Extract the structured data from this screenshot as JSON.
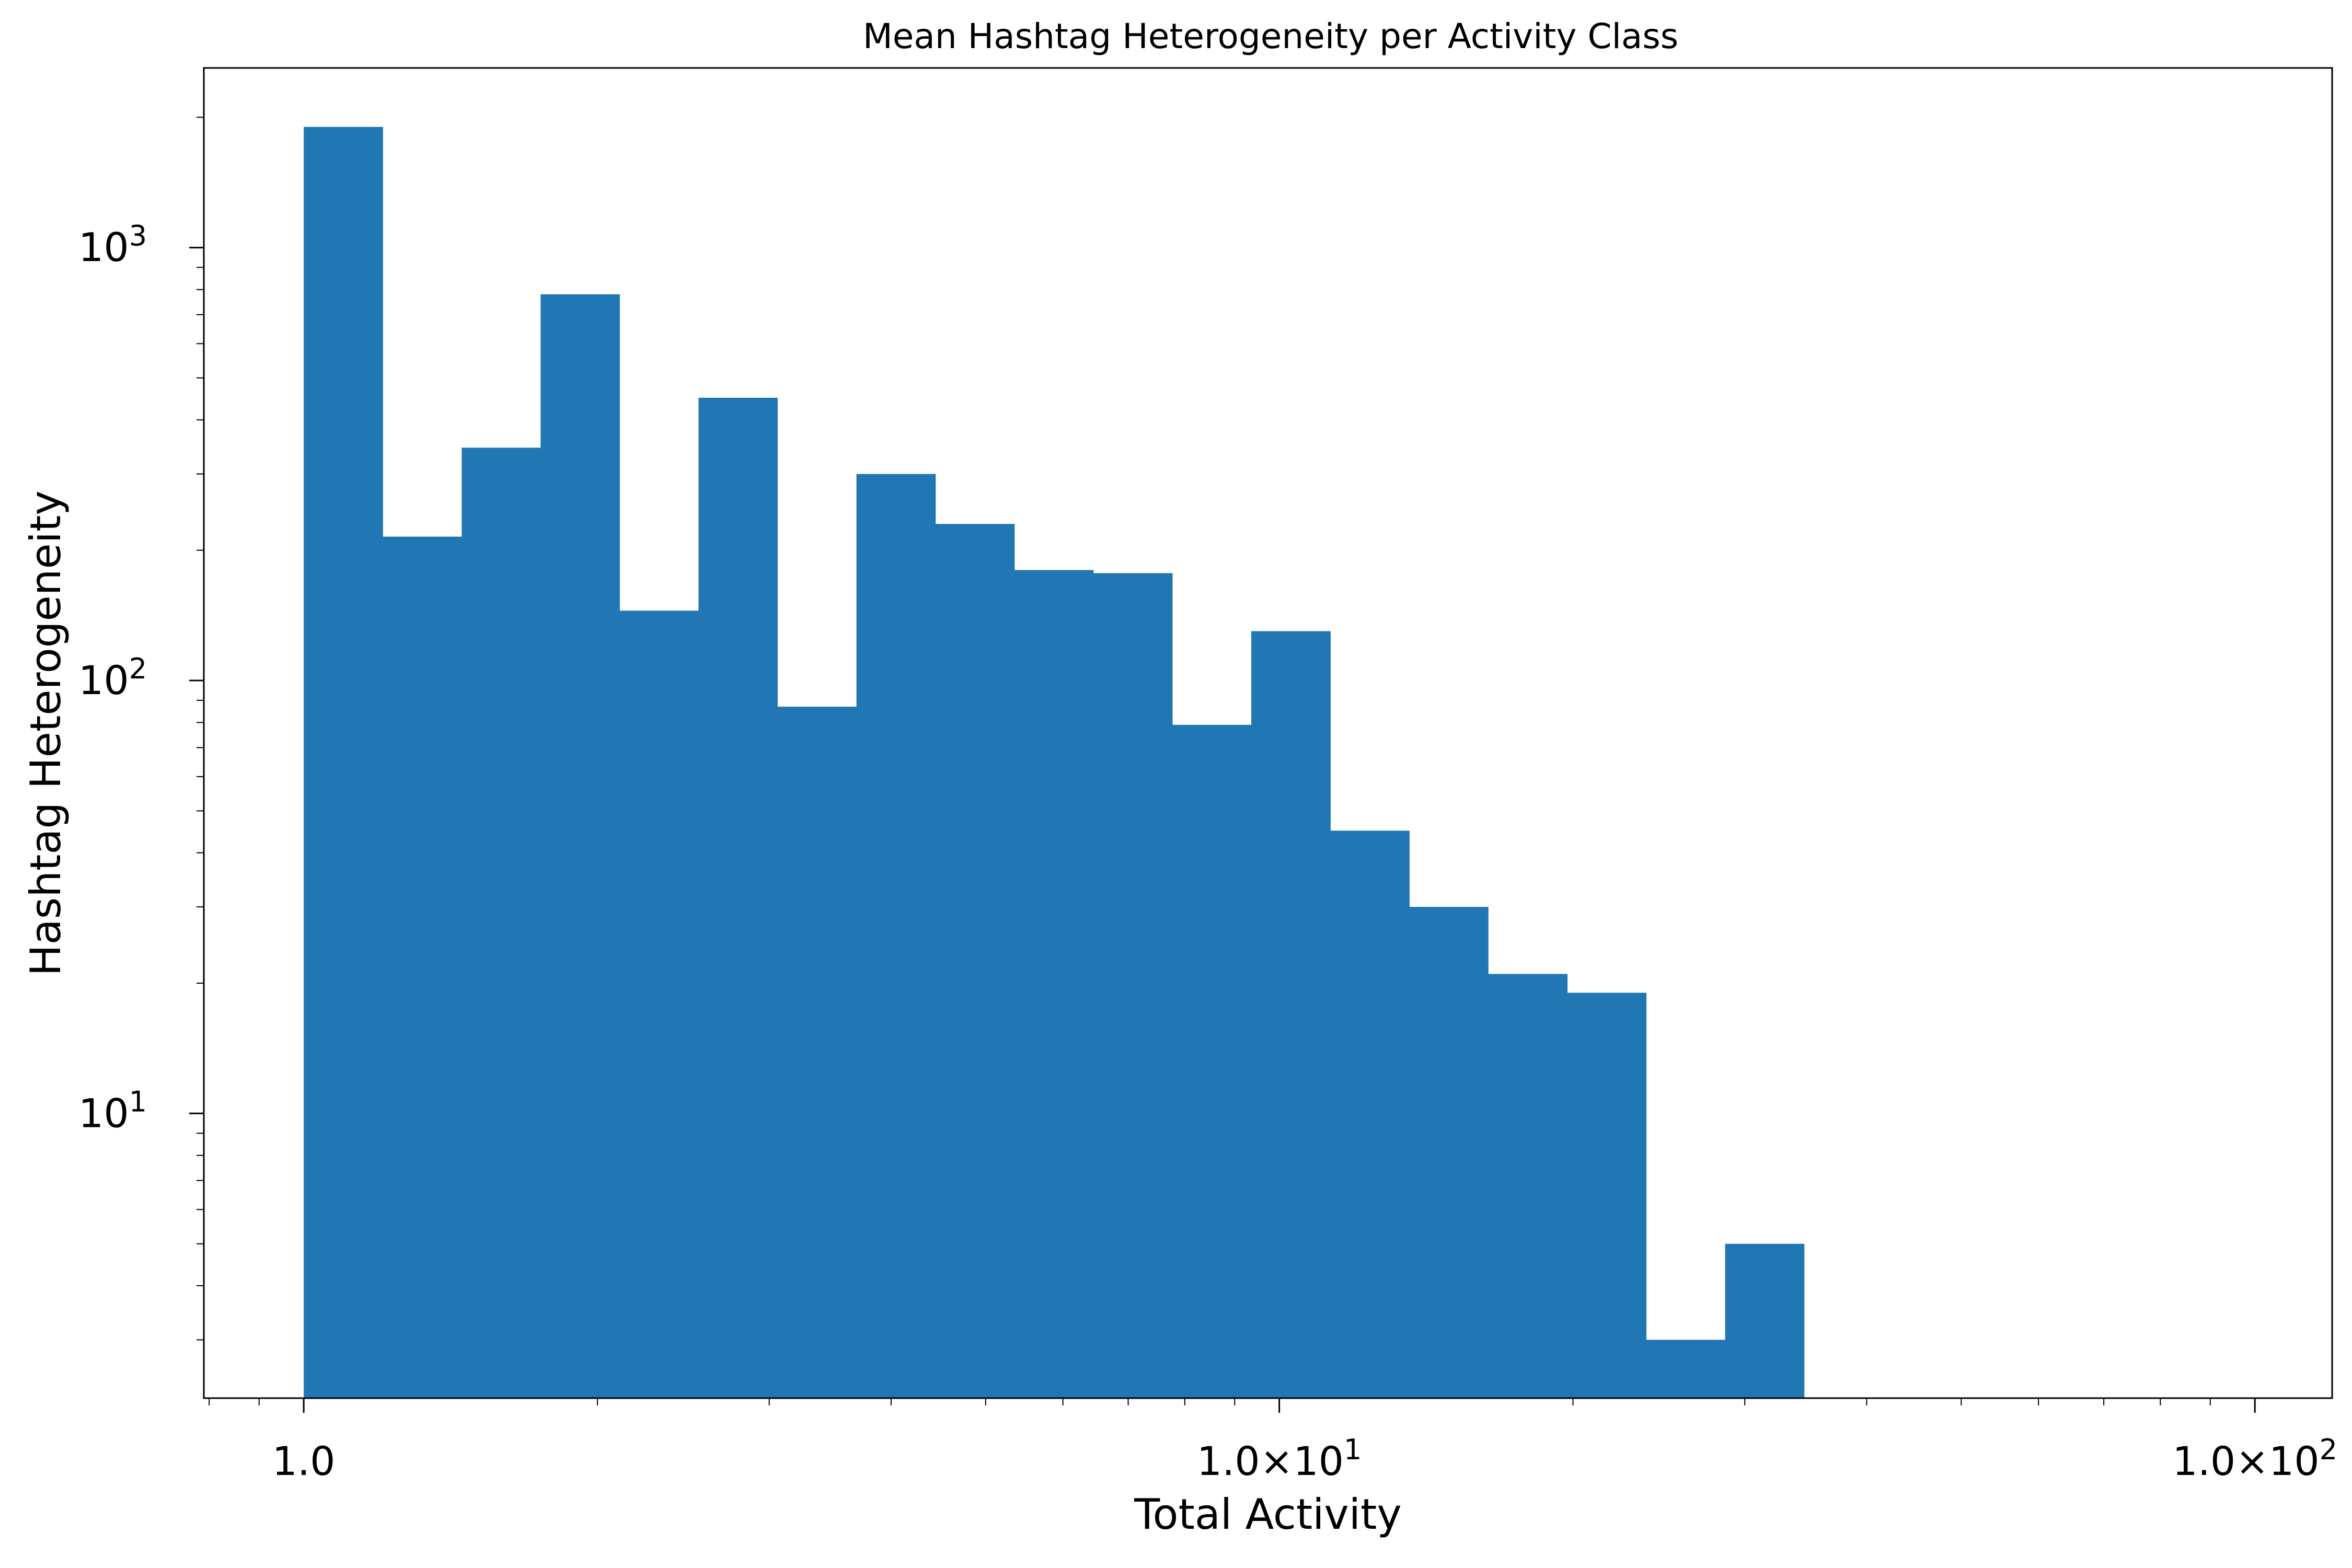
{
  "chart_data": {
    "type": "bar",
    "title": "Mean Hashtag Heterogeneity per Activity Class",
    "xlabel": "Total Activity",
    "ylabel": "Hashtag Heterogeneity",
    "x_scale": "log",
    "y_scale": "log",
    "xlim": [
      0.79,
      120
    ],
    "ylim": [
      2.2,
      2600
    ],
    "grid": false,
    "bar_color": "#2177b4",
    "x_ticks": [
      {
        "value": 1,
        "label": "1.0",
        "exp": ""
      },
      {
        "value": 10,
        "label": "1.0×10",
        "exp": "1"
      },
      {
        "value": 100,
        "label": "1.0×10",
        "exp": "2"
      }
    ],
    "y_ticks": [
      {
        "value": 10,
        "label": "10",
        "exp": "1"
      },
      {
        "value": 100,
        "label": "10",
        "exp": "2"
      },
      {
        "value": 1000,
        "label": "10",
        "exp": "3"
      }
    ],
    "bins": [
      {
        "x0": 1.0,
        "x1": 1.205,
        "value": 1900
      },
      {
        "x0": 1.205,
        "x1": 1.452,
        "value": 215
      },
      {
        "x0": 1.452,
        "x1": 1.749,
        "value": 345
      },
      {
        "x0": 1.749,
        "x1": 2.107,
        "value": 780
      },
      {
        "x0": 2.107,
        "x1": 2.539,
        "value": 145
      },
      {
        "x0": 2.539,
        "x1": 3.059,
        "value": 450
      },
      {
        "x0": 3.059,
        "x1": 3.686,
        "value": 87
      },
      {
        "x0": 3.686,
        "x1": 4.441,
        "value": 300
      },
      {
        "x0": 4.441,
        "x1": 5.351,
        "value": 230
      },
      {
        "x0": 5.351,
        "x1": 6.447,
        "value": 180
      },
      {
        "x0": 6.447,
        "x1": 7.768,
        "value": 177
      },
      {
        "x0": 7.768,
        "x1": 9.36,
        "value": 79
      },
      {
        "x0": 9.36,
        "x1": 11.28,
        "value": 130
      },
      {
        "x0": 11.28,
        "x1": 13.59,
        "value": 45
      },
      {
        "x0": 13.59,
        "x1": 16.37,
        "value": 30
      },
      {
        "x0": 16.37,
        "x1": 19.73,
        "value": 21
      },
      {
        "x0": 19.73,
        "x1": 23.77,
        "value": 19
      },
      {
        "x0": 23.77,
        "x1": 28.64,
        "value": 3
      },
      {
        "x0": 28.64,
        "x1": 34.51,
        "value": 5
      }
    ]
  }
}
